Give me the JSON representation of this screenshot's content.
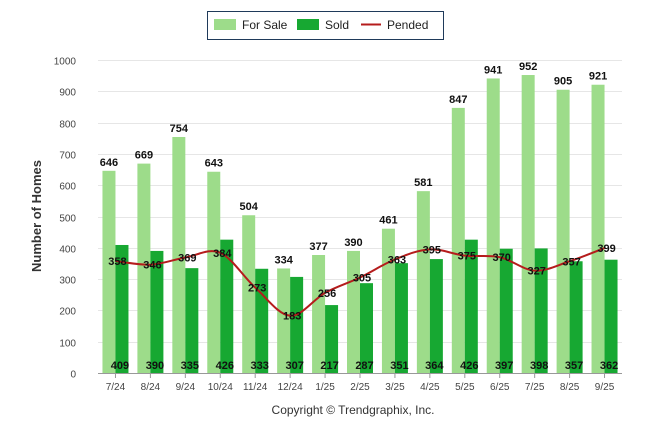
{
  "chart_data": {
    "type": "bar",
    "title": "",
    "xlabel": "",
    "ylabel": "Number of Homes",
    "ylim": [
      0,
      1000
    ],
    "yticks": [
      0,
      100,
      200,
      300,
      400,
      500,
      600,
      700,
      800,
      900,
      1000
    ],
    "categories": [
      "7/24",
      "8/24",
      "9/24",
      "10/24",
      "11/24",
      "12/24",
      "1/25",
      "2/25",
      "3/25",
      "4/25",
      "5/25",
      "6/25",
      "7/25",
      "8/25",
      "9/25"
    ],
    "series": [
      {
        "name": "For Sale",
        "kind": "bar",
        "color": "#9ddc8a",
        "values": [
          646,
          669,
          754,
          643,
          504,
          334,
          377,
          390,
          461,
          581,
          847,
          941,
          952,
          905,
          921
        ]
      },
      {
        "name": "Sold",
        "kind": "bar",
        "color": "#17a832",
        "values": [
          409,
          390,
          335,
          426,
          333,
          307,
          217,
          287,
          351,
          364,
          426,
          397,
          398,
          357,
          362
        ]
      },
      {
        "name": "Pended",
        "kind": "line",
        "color": "#b51c1c",
        "values": [
          358,
          346,
          369,
          384,
          273,
          183,
          256,
          305,
          363,
          395,
          375,
          370,
          327,
          357,
          399
        ]
      }
    ],
    "legend": {
      "position": "top-center"
    },
    "grid": true
  },
  "footer": {
    "copyright": "Copyright © Trendgraphix, Inc."
  }
}
